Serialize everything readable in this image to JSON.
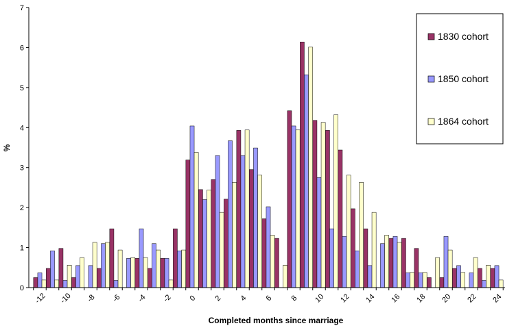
{
  "chart_data": {
    "type": "bar",
    "xlabel": "Completed months since marriage",
    "ylabel": "%",
    "ylim": [
      0,
      7
    ],
    "yticks": [
      0,
      1,
      2,
      3,
      4,
      5,
      6,
      7
    ],
    "x": [
      -12,
      -11,
      -10,
      -9,
      -8,
      -7,
      -6,
      -5,
      -4,
      -3,
      -2,
      -1,
      0,
      1,
      2,
      3,
      4,
      5,
      6,
      7,
      8,
      9,
      10,
      11,
      12,
      13,
      14,
      15,
      16,
      17,
      18,
      19,
      20,
      21,
      22,
      23,
      24
    ],
    "xtick_labels": [
      "-12",
      "-10",
      "-8",
      "-6",
      "-4",
      "-2",
      "0",
      "2",
      "4",
      "6",
      "8",
      "10",
      "12",
      "14",
      "16",
      "18",
      "20",
      "22",
      "24"
    ],
    "legend_position": "right",
    "grid": false,
    "series": [
      {
        "name": "1830 cohort",
        "color": "#993366",
        "values": [
          0.25,
          0.48,
          0.98,
          0.25,
          0,
          0.48,
          1.47,
          0,
          0.73,
          0.48,
          0.73,
          1.47,
          3.19,
          2.45,
          2.7,
          2.21,
          3.93,
          2.95,
          1.72,
          1.23,
          4.42,
          6.14,
          4.18,
          3.93,
          3.44,
          1.97,
          1.47,
          0,
          1.23,
          1.23,
          0.98,
          0.25,
          0.25,
          0.48,
          0,
          0.48,
          0.48
        ]
      },
      {
        "name": "1850 cohort",
        "color": "#9999FF",
        "values": [
          0.37,
          0.92,
          0.18,
          0.55,
          0.55,
          1.1,
          0.18,
          0.73,
          1.47,
          1.1,
          0.73,
          0.92,
          4.04,
          2.2,
          3.3,
          3.67,
          3.3,
          3.49,
          2.02,
          0,
          4.04,
          5.32,
          2.75,
          1.47,
          1.28,
          0.92,
          0.55,
          1.1,
          1.28,
          0.37,
          0.37,
          0,
          1.28,
          0.55,
          0.37,
          0.18,
          0.55
        ]
      },
      {
        "name": "1864 cohort",
        "color": "#FFFFCC",
        "values": [
          0.19,
          0.19,
          0.56,
          0.75,
          1.13,
          1.13,
          0.94,
          0.75,
          0.75,
          0.94,
          0.19,
          0.94,
          3.38,
          2.44,
          1.88,
          2.63,
          3.94,
          2.81,
          1.31,
          0.56,
          3.94,
          6.01,
          4.13,
          4.32,
          2.81,
          2.63,
          1.88,
          1.31,
          1.13,
          0.38,
          0.38,
          0.75,
          0.94,
          0.38,
          0.75,
          0.56,
          0.19
        ]
      }
    ]
  }
}
